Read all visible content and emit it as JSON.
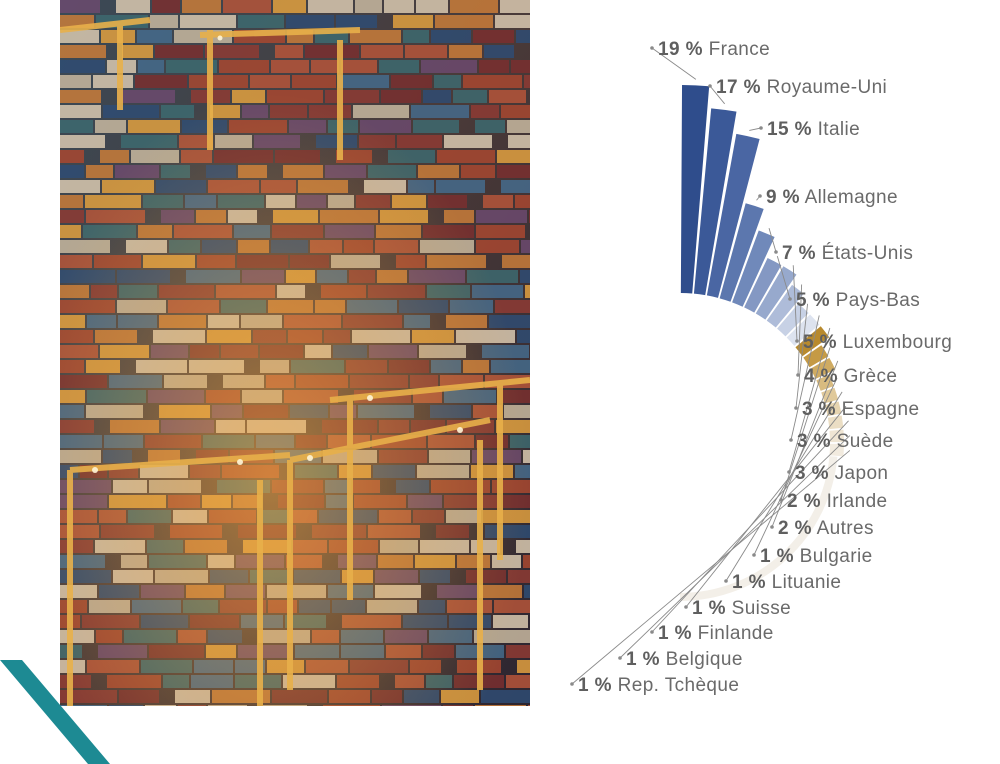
{
  "photo": {
    "subject": "container-port-night-aerial"
  },
  "colors": {
    "europe": [
      "#2f4d8c",
      "#3b5998",
      "#4a66a3",
      "#5c77ae",
      "#7089ba",
      "#8498c3",
      "#97a9cd",
      "#aebcd9",
      "#c7d1e5",
      "#dde3ef"
    ],
    "other": [
      "#b88a2e",
      "#c59a45",
      "#cfab62",
      "#d8bb80",
      "#e0c99a",
      "#e6d4b0",
      "#ebdec4",
      "#efe5d3",
      "#f2ebdf",
      "#f4efe7"
    ],
    "leader": "#8a8a8a"
  },
  "chart_data": {
    "type": "radial-bar",
    "unit": "%",
    "categories": [
      "France",
      "Royaume-Uni",
      "Italie",
      "Allemagne",
      "États-Unis",
      "Pays-Bas",
      "Luxembourg",
      "Grèce",
      "Espagne",
      "Suède",
      "Japon",
      "Irlande",
      "Autres",
      "Bulgarie",
      "Lituanie",
      "Suisse",
      "Finlande",
      "Belgique",
      "Rep. Tchèque"
    ],
    "values": [
      19,
      17,
      15,
      9,
      7,
      5,
      5,
      4,
      3,
      3,
      3,
      2,
      2,
      1,
      1,
      1,
      1,
      1,
      1
    ],
    "labels": [
      "19 %",
      "17 %",
      "15 %",
      "9 %",
      "7 %",
      "5 %",
      "5 %",
      "4 %",
      "3 %",
      "3 %",
      "3 %",
      "2 %",
      "2 %",
      "1 %",
      "1 %",
      "1 %",
      "1 %",
      "1 %",
      "1 %"
    ]
  }
}
